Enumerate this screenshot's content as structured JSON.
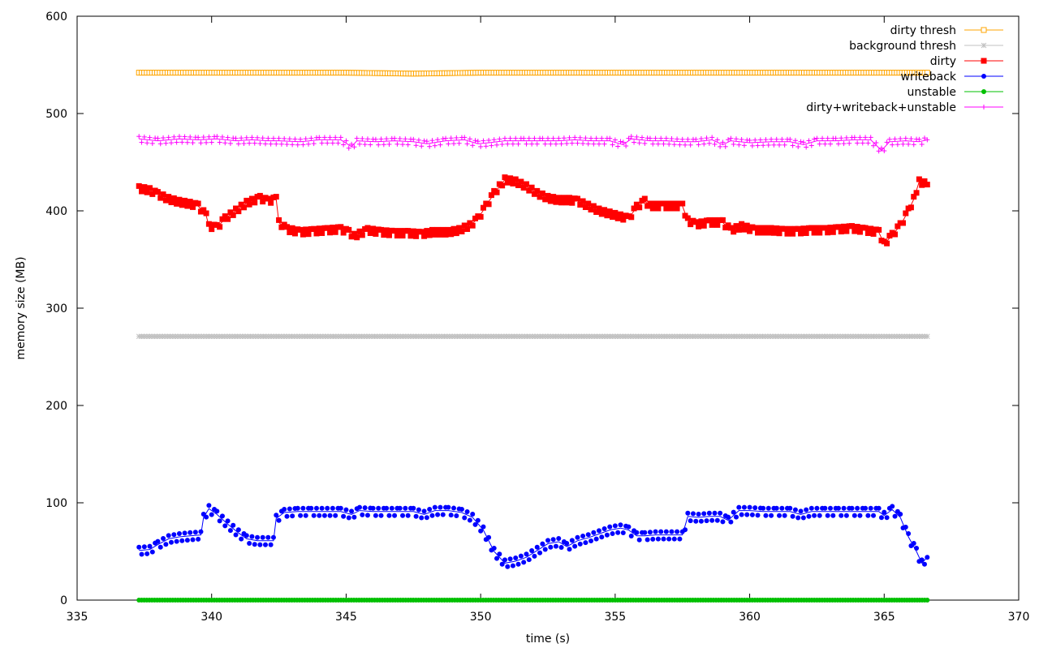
{
  "chart_data": {
    "type": "line",
    "title": "",
    "xlabel": "time (s)",
    "ylabel": "memory size (MB)",
    "xlim": [
      335,
      370
    ],
    "ylim": [
      0,
      600
    ],
    "xticks": [
      335,
      340,
      345,
      350,
      355,
      360,
      365,
      370
    ],
    "yticks": [
      0,
      100,
      200,
      300,
      400,
      500,
      600
    ],
    "xtick_labels": [
      "335",
      "340",
      "345",
      "350",
      "355",
      "360",
      "365",
      "370"
    ],
    "ytick_labels": [
      "0",
      "100",
      "200",
      "300",
      "400",
      "500",
      "600"
    ],
    "grid": false,
    "legend_position": "top-right",
    "series": [
      {
        "name": "dirty thresh",
        "color": "#ffa500",
        "marker": "square-open",
        "points": [
          [
            337.3,
            542
          ],
          [
            340.0,
            542
          ],
          [
            342.5,
            542
          ],
          [
            345.0,
            542
          ],
          [
            347.5,
            541
          ],
          [
            350.0,
            542
          ],
          [
            352.5,
            542
          ],
          [
            355.0,
            542
          ],
          [
            357.5,
            542
          ],
          [
            360.0,
            542
          ],
          [
            362.5,
            542
          ],
          [
            365.0,
            542
          ],
          [
            366.6,
            542
          ]
        ]
      },
      {
        "name": "background thresh",
        "color": "#c0c0c0",
        "marker": "star",
        "points": [
          [
            337.3,
            271
          ],
          [
            340.0,
            271
          ],
          [
            342.5,
            271
          ],
          [
            345.0,
            271
          ],
          [
            347.5,
            271
          ],
          [
            350.0,
            271
          ],
          [
            352.5,
            271
          ],
          [
            355.0,
            271
          ],
          [
            357.5,
            271
          ],
          [
            360.0,
            271
          ],
          [
            362.5,
            271
          ],
          [
            365.0,
            271
          ],
          [
            366.6,
            271
          ]
        ]
      },
      {
        "name": "dirty",
        "color": "#ff0000",
        "marker": "square",
        "points": [
          [
            337.3,
            423
          ],
          [
            337.7,
            421
          ],
          [
            338.0,
            417
          ],
          [
            338.4,
            412
          ],
          [
            338.8,
            409
          ],
          [
            339.2,
            407
          ],
          [
            339.5,
            405
          ],
          [
            339.8,
            395
          ],
          [
            339.9,
            384
          ],
          [
            340.2,
            383
          ],
          [
            340.5,
            392
          ],
          [
            340.9,
            400
          ],
          [
            341.3,
            408
          ],
          [
            341.8,
            413
          ],
          [
            342.1,
            410
          ],
          [
            342.4,
            412
          ],
          [
            342.5,
            388
          ],
          [
            342.8,
            381
          ],
          [
            343.3,
            378
          ],
          [
            343.8,
            379
          ],
          [
            344.3,
            380
          ],
          [
            344.8,
            381
          ],
          [
            345.1,
            378
          ],
          [
            345.3,
            374
          ],
          [
            345.8,
            380
          ],
          [
            346.3,
            378
          ],
          [
            346.8,
            377
          ],
          [
            347.3,
            377
          ],
          [
            347.8,
            376
          ],
          [
            348.2,
            378
          ],
          [
            348.8,
            378
          ],
          [
            349.2,
            380
          ],
          [
            349.6,
            385
          ],
          [
            349.9,
            392
          ],
          [
            350.2,
            405
          ],
          [
            350.5,
            418
          ],
          [
            350.9,
            432
          ],
          [
            351.3,
            430
          ],
          [
            351.7,
            425
          ],
          [
            352.1,
            418
          ],
          [
            352.5,
            413
          ],
          [
            352.9,
            411
          ],
          [
            353.3,
            411
          ],
          [
            353.6,
            410
          ],
          [
            354.0,
            405
          ],
          [
            354.4,
            400
          ],
          [
            354.8,
            397
          ],
          [
            355.2,
            394
          ],
          [
            355.5,
            392
          ],
          [
            355.8,
            404
          ],
          [
            356.1,
            410
          ],
          [
            356.3,
            405
          ],
          [
            356.8,
            405
          ],
          [
            357.2,
            405
          ],
          [
            357.5,
            405
          ],
          [
            357.7,
            390
          ],
          [
            358.0,
            386
          ],
          [
            358.5,
            388
          ],
          [
            359.0,
            388
          ],
          [
            359.3,
            380
          ],
          [
            359.7,
            384
          ],
          [
            360.2,
            380
          ],
          [
            360.8,
            380
          ],
          [
            361.3,
            379
          ],
          [
            361.8,
            379
          ],
          [
            362.3,
            380
          ],
          [
            362.8,
            380
          ],
          [
            363.3,
            381
          ],
          [
            363.8,
            382
          ],
          [
            364.3,
            380
          ],
          [
            364.8,
            378
          ],
          [
            365.0,
            366
          ],
          [
            365.3,
            375
          ],
          [
            365.6,
            385
          ],
          [
            365.9,
            400
          ],
          [
            366.1,
            412
          ],
          [
            366.3,
            430
          ],
          [
            366.6,
            427
          ]
        ]
      },
      {
        "name": "writeback",
        "color": "#0000ff",
        "marker": "circle",
        "points": [
          [
            337.3,
            51
          ],
          [
            337.7,
            52
          ],
          [
            338.0,
            57
          ],
          [
            338.4,
            63
          ],
          [
            338.8,
            65
          ],
          [
            339.2,
            66
          ],
          [
            339.6,
            67
          ],
          [
            339.7,
            85
          ],
          [
            339.9,
            94
          ],
          [
            340.2,
            88
          ],
          [
            340.6,
            78
          ],
          [
            341.0,
            69
          ],
          [
            341.3,
            63
          ],
          [
            341.7,
            61
          ],
          [
            342.1,
            61
          ],
          [
            342.3,
            61
          ],
          [
            342.4,
            84
          ],
          [
            342.7,
            90
          ],
          [
            343.2,
            91
          ],
          [
            343.7,
            91
          ],
          [
            344.3,
            91
          ],
          [
            344.8,
            91
          ],
          [
            345.2,
            88
          ],
          [
            345.5,
            92
          ],
          [
            346.0,
            91
          ],
          [
            346.5,
            91
          ],
          [
            347.0,
            91
          ],
          [
            347.5,
            91
          ],
          [
            347.9,
            88
          ],
          [
            348.3,
            92
          ],
          [
            348.8,
            92
          ],
          [
            349.3,
            90
          ],
          [
            349.7,
            85
          ],
          [
            350.1,
            72
          ],
          [
            350.5,
            50
          ],
          [
            350.9,
            38
          ],
          [
            351.3,
            40
          ],
          [
            351.7,
            44
          ],
          [
            352.1,
            51
          ],
          [
            352.5,
            58
          ],
          [
            352.9,
            60
          ],
          [
            353.2,
            55
          ],
          [
            353.6,
            61
          ],
          [
            354.0,
            64
          ],
          [
            354.4,
            68
          ],
          [
            354.8,
            72
          ],
          [
            355.2,
            74
          ],
          [
            355.5,
            72
          ],
          [
            355.8,
            66
          ],
          [
            356.1,
            66
          ],
          [
            356.5,
            67
          ],
          [
            356.9,
            67
          ],
          [
            357.3,
            67
          ],
          [
            357.5,
            67
          ],
          [
            357.7,
            86
          ],
          [
            358.1,
            85
          ],
          [
            358.5,
            86
          ],
          [
            358.9,
            86
          ],
          [
            359.2,
            82
          ],
          [
            359.6,
            92
          ],
          [
            360.0,
            92
          ],
          [
            360.5,
            91
          ],
          [
            361.0,
            91
          ],
          [
            361.5,
            91
          ],
          [
            361.9,
            88
          ],
          [
            362.3,
            91
          ],
          [
            362.8,
            91
          ],
          [
            363.3,
            91
          ],
          [
            363.8,
            91
          ],
          [
            364.3,
            91
          ],
          [
            364.8,
            91
          ],
          [
            365.0,
            87
          ],
          [
            365.3,
            93
          ],
          [
            365.6,
            85
          ],
          [
            365.9,
            65
          ],
          [
            366.2,
            50
          ],
          [
            366.4,
            38
          ],
          [
            366.6,
            44
          ]
        ]
      },
      {
        "name": "unstable",
        "color": "#00c000",
        "marker": "circle",
        "points": [
          [
            337.3,
            0
          ],
          [
            340.0,
            0
          ],
          [
            342.5,
            0
          ],
          [
            345.0,
            0
          ],
          [
            347.5,
            0
          ],
          [
            350.0,
            0
          ],
          [
            352.5,
            0
          ],
          [
            355.0,
            0
          ],
          [
            357.5,
            0
          ],
          [
            360.0,
            0
          ],
          [
            362.5,
            0
          ],
          [
            365.0,
            0
          ],
          [
            366.6,
            0
          ]
        ]
      },
      {
        "name": "dirty+writeback+unstable",
        "color": "#ff00ff",
        "marker": "plus",
        "points": [
          [
            337.3,
            474
          ],
          [
            338.0,
            472
          ],
          [
            338.8,
            474
          ],
          [
            339.5,
            473
          ],
          [
            340.2,
            474
          ],
          [
            340.9,
            472
          ],
          [
            341.5,
            473
          ],
          [
            342.1,
            472
          ],
          [
            342.5,
            472
          ],
          [
            343.3,
            471
          ],
          [
            344.0,
            473
          ],
          [
            344.8,
            473
          ],
          [
            345.2,
            466
          ],
          [
            345.4,
            472
          ],
          [
            346.1,
            471
          ],
          [
            346.8,
            472
          ],
          [
            347.5,
            471
          ],
          [
            348.0,
            469
          ],
          [
            348.7,
            472
          ],
          [
            349.4,
            473
          ],
          [
            349.9,
            469
          ],
          [
            350.3,
            470
          ],
          [
            350.9,
            472
          ],
          [
            351.6,
            472
          ],
          [
            352.3,
            472
          ],
          [
            352.9,
            472
          ],
          [
            353.5,
            473
          ],
          [
            354.1,
            472
          ],
          [
            354.8,
            472
          ],
          [
            355.3,
            468
          ],
          [
            355.6,
            474
          ],
          [
            356.3,
            472
          ],
          [
            356.9,
            472
          ],
          [
            357.5,
            471
          ],
          [
            358.0,
            471
          ],
          [
            358.6,
            473
          ],
          [
            359.0,
            468
          ],
          [
            359.3,
            472
          ],
          [
            360.0,
            470
          ],
          [
            360.8,
            471
          ],
          [
            361.5,
            471
          ],
          [
            362.0,
            468
          ],
          [
            362.5,
            472
          ],
          [
            363.2,
            472
          ],
          [
            363.9,
            473
          ],
          [
            364.5,
            473
          ],
          [
            364.9,
            462
          ],
          [
            365.2,
            471
          ],
          [
            365.8,
            472
          ],
          [
            366.3,
            471
          ],
          [
            366.6,
            473
          ]
        ]
      }
    ]
  }
}
